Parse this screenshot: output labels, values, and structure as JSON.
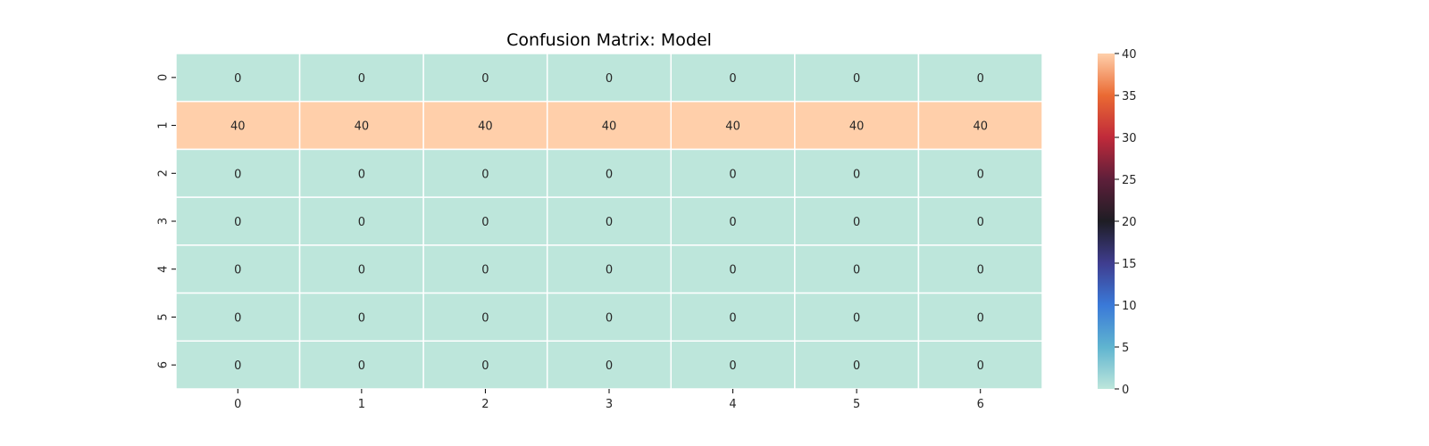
{
  "chart_data": {
    "type": "heatmap",
    "title": "Confusion Matrix: Model",
    "xlabel": "",
    "ylabel": "",
    "x_categories": [
      "0",
      "1",
      "2",
      "3",
      "4",
      "5",
      "6"
    ],
    "y_categories": [
      "0",
      "1",
      "2",
      "3",
      "4",
      "5",
      "6"
    ],
    "values": [
      [
        0,
        0,
        0,
        0,
        0,
        0,
        0
      ],
      [
        40,
        40,
        40,
        40,
        40,
        40,
        40
      ],
      [
        0,
        0,
        0,
        0,
        0,
        0,
        0
      ],
      [
        0,
        0,
        0,
        0,
        0,
        0,
        0
      ],
      [
        0,
        0,
        0,
        0,
        0,
        0,
        0
      ],
      [
        0,
        0,
        0,
        0,
        0,
        0,
        0
      ],
      [
        0,
        0,
        0,
        0,
        0,
        0,
        0
      ]
    ],
    "annotations": true,
    "colorbar": {
      "range": [
        0,
        40
      ],
      "ticks": [
        0,
        5,
        10,
        15,
        20,
        25,
        30,
        35,
        40
      ],
      "colormap": "icefire"
    },
    "colors": {
      "low": "#bde6db",
      "high": "#ffcfaa",
      "grid_lines": "#ffffff",
      "text": "#262626"
    }
  }
}
